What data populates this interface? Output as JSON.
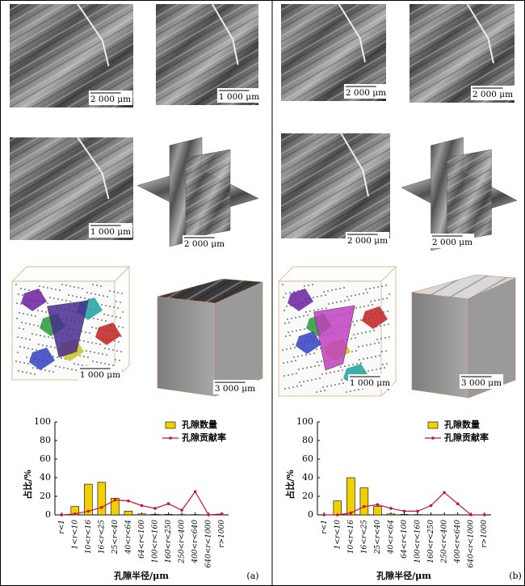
{
  "chart_data": [
    {
      "type": "bar",
      "label": "(a)",
      "scale_bars": [
        "2 000 μm",
        "1 000 μm",
        "1 000 μm",
        "2 000 μm",
        "1 000 μm",
        "3 000 μm"
      ],
      "y_label": "占比/%",
      "x_label": "孔隙半径/μm",
      "categories": [
        "r<1",
        "1<r<10",
        "10<r<16",
        "16<r<25",
        "25<r<40",
        "40<r<64",
        "64<r<100",
        "100<r<160",
        "160<r<250",
        "250<r<400",
        "400<r<640",
        "640<r<1000",
        "r>1000"
      ],
      "series": [
        {
          "name": "孔隙数量",
          "type": "bar",
          "color": "#f0d000",
          "values": [
            0,
            9,
            33,
            35,
            18,
            4,
            1,
            0.5,
            0.5,
            0.3,
            0.3,
            0,
            0
          ]
        },
        {
          "name": "孔隙贡献率",
          "type": "line",
          "color": "#c8143c",
          "values": [
            0,
            1,
            4,
            8,
            16,
            15,
            10,
            7,
            12,
            5,
            25,
            0,
            1
          ]
        }
      ],
      "ylim": [
        0,
        100
      ],
      "yticks": [
        0,
        20,
        40,
        60,
        80,
        100
      ]
    },
    {
      "type": "bar",
      "label": "(b)",
      "scale_bars": [
        "2 000 μm",
        "2 000 μm",
        "2 000 μm",
        "2 000 μm",
        "1 000 μm",
        "3 000 μm"
      ],
      "y_label": "占比/%",
      "x_label": "孔隙半径/μm",
      "categories": [
        "r<1",
        "1<r<10",
        "10<r<16",
        "16<r<25",
        "25<r<40",
        "40<r<64",
        "64<r<100",
        "100<r<160",
        "160<r<250",
        "250<r<400",
        "400<r<640",
        "640<r<1000",
        "r>1000"
      ],
      "series": [
        {
          "name": "孔隙数量",
          "type": "bar",
          "color": "#f0d000",
          "values": [
            0,
            15,
            40,
            29,
            9,
            1,
            0.5,
            0.3,
            0.2,
            0.1,
            0,
            0,
            0
          ]
        },
        {
          "name": "孔隙贡献率",
          "type": "line",
          "color": "#c8143c",
          "values": [
            0,
            0,
            2,
            9,
            11,
            7,
            4,
            4,
            10,
            24,
            12,
            0,
            0
          ]
        }
      ],
      "ylim": [
        0,
        100
      ],
      "yticks": [
        0,
        20,
        40,
        60,
        80,
        100
      ]
    }
  ]
}
